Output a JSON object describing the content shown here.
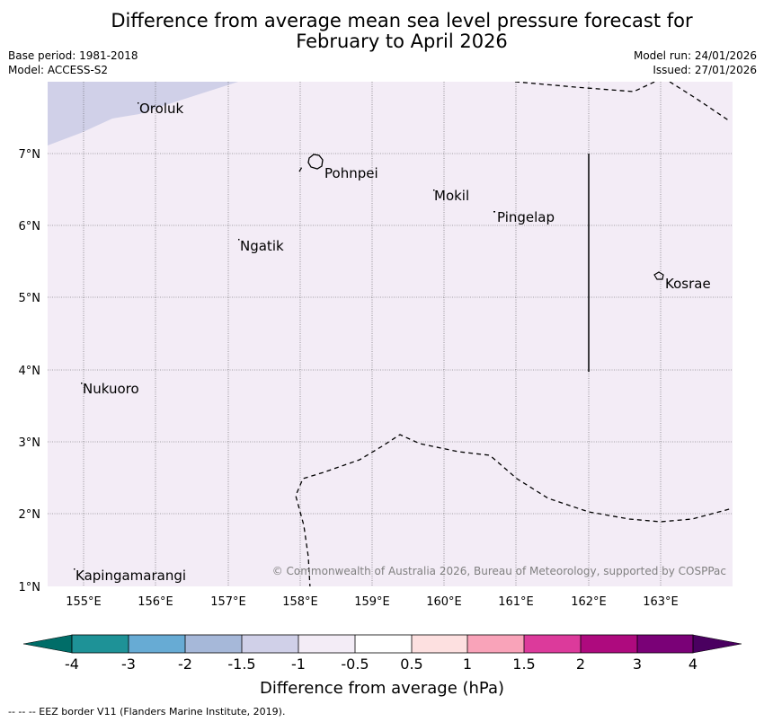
{
  "title": {
    "line1": "Difference from average mean sea level pressure forecast for",
    "line2": "February to April 2026"
  },
  "meta": {
    "base_period": "Base period: 1981-2018",
    "model": "Model: ACCESS-S2",
    "model_run": "Model run: 24/01/2026",
    "issued": "Issued: 27/01/2026"
  },
  "map": {
    "lat_labels": [
      "7°N",
      "6°N",
      "5°N",
      "4°N",
      "3°N",
      "2°N",
      "1°N"
    ],
    "lon_labels": [
      "155°E",
      "156°E",
      "157°E",
      "158°E",
      "159°E",
      "160°E",
      "161°E",
      "162°E",
      "163°E"
    ],
    "places": [
      "Oroluk",
      "Pohnpei",
      "Mokil",
      "Pingelap",
      "Ngatik",
      "Kosrae",
      "Nukuoro",
      "Kapingamarangi"
    ],
    "copyright": "© Commonwealth of Australia 2026, Bureau of Meteorology, supported by COSPPac"
  },
  "colorbar": {
    "labels": [
      "-4",
      "-3",
      "-2",
      "-1.5",
      "-1",
      "-0.5",
      "0.5",
      "1",
      "1.5",
      "2",
      "3",
      "4"
    ],
    "colors": [
      "#006d68",
      "#1e9297",
      "#67abd4",
      "#a6b8d9",
      "#d0d0e8",
      "#f3ecf6",
      "#ffffff",
      "#fde0e0",
      "#f9a3b9",
      "#dc3a9b",
      "#ae0a7e",
      "#7a0177",
      "#4a0060"
    ],
    "title": "Difference from average (hPa)",
    "map_fill_main": "#f3ecf6",
    "map_fill_low": "#d0d0e8"
  },
  "footer": "--  --  -- EEZ border V11 (Flanders Marine Institute, 2019)."
}
